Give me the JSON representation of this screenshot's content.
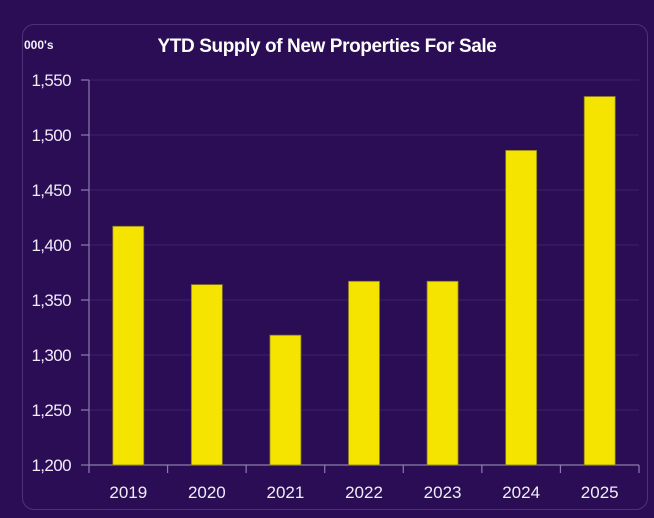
{
  "chart_data": {
    "type": "bar",
    "title": "YTD Supply of New Properties For Sale",
    "unit_label": "000's",
    "xlabel": "",
    "ylabel": "",
    "categories": [
      "2019",
      "2020",
      "2021",
      "2022",
      "2023",
      "2024",
      "2025"
    ],
    "values": [
      1417,
      1364,
      1318,
      1367,
      1367,
      1486,
      1535
    ],
    "ylim": [
      1200,
      1550
    ],
    "yticks": [
      1200,
      1250,
      1300,
      1350,
      1400,
      1450,
      1500,
      1550
    ],
    "ytick_labels": [
      "1,200",
      "1,250",
      "1,300",
      "1,350",
      "1,400",
      "1,450",
      "1,500",
      "1,550"
    ],
    "grid": true,
    "legend": "none",
    "colors": {
      "bar": "#f5e400",
      "bar_edge": "#8a7d20",
      "background": "#2b0d55",
      "grid": "#3d2168",
      "axis": "#8d7cad",
      "text": "#f1ecfa"
    }
  }
}
